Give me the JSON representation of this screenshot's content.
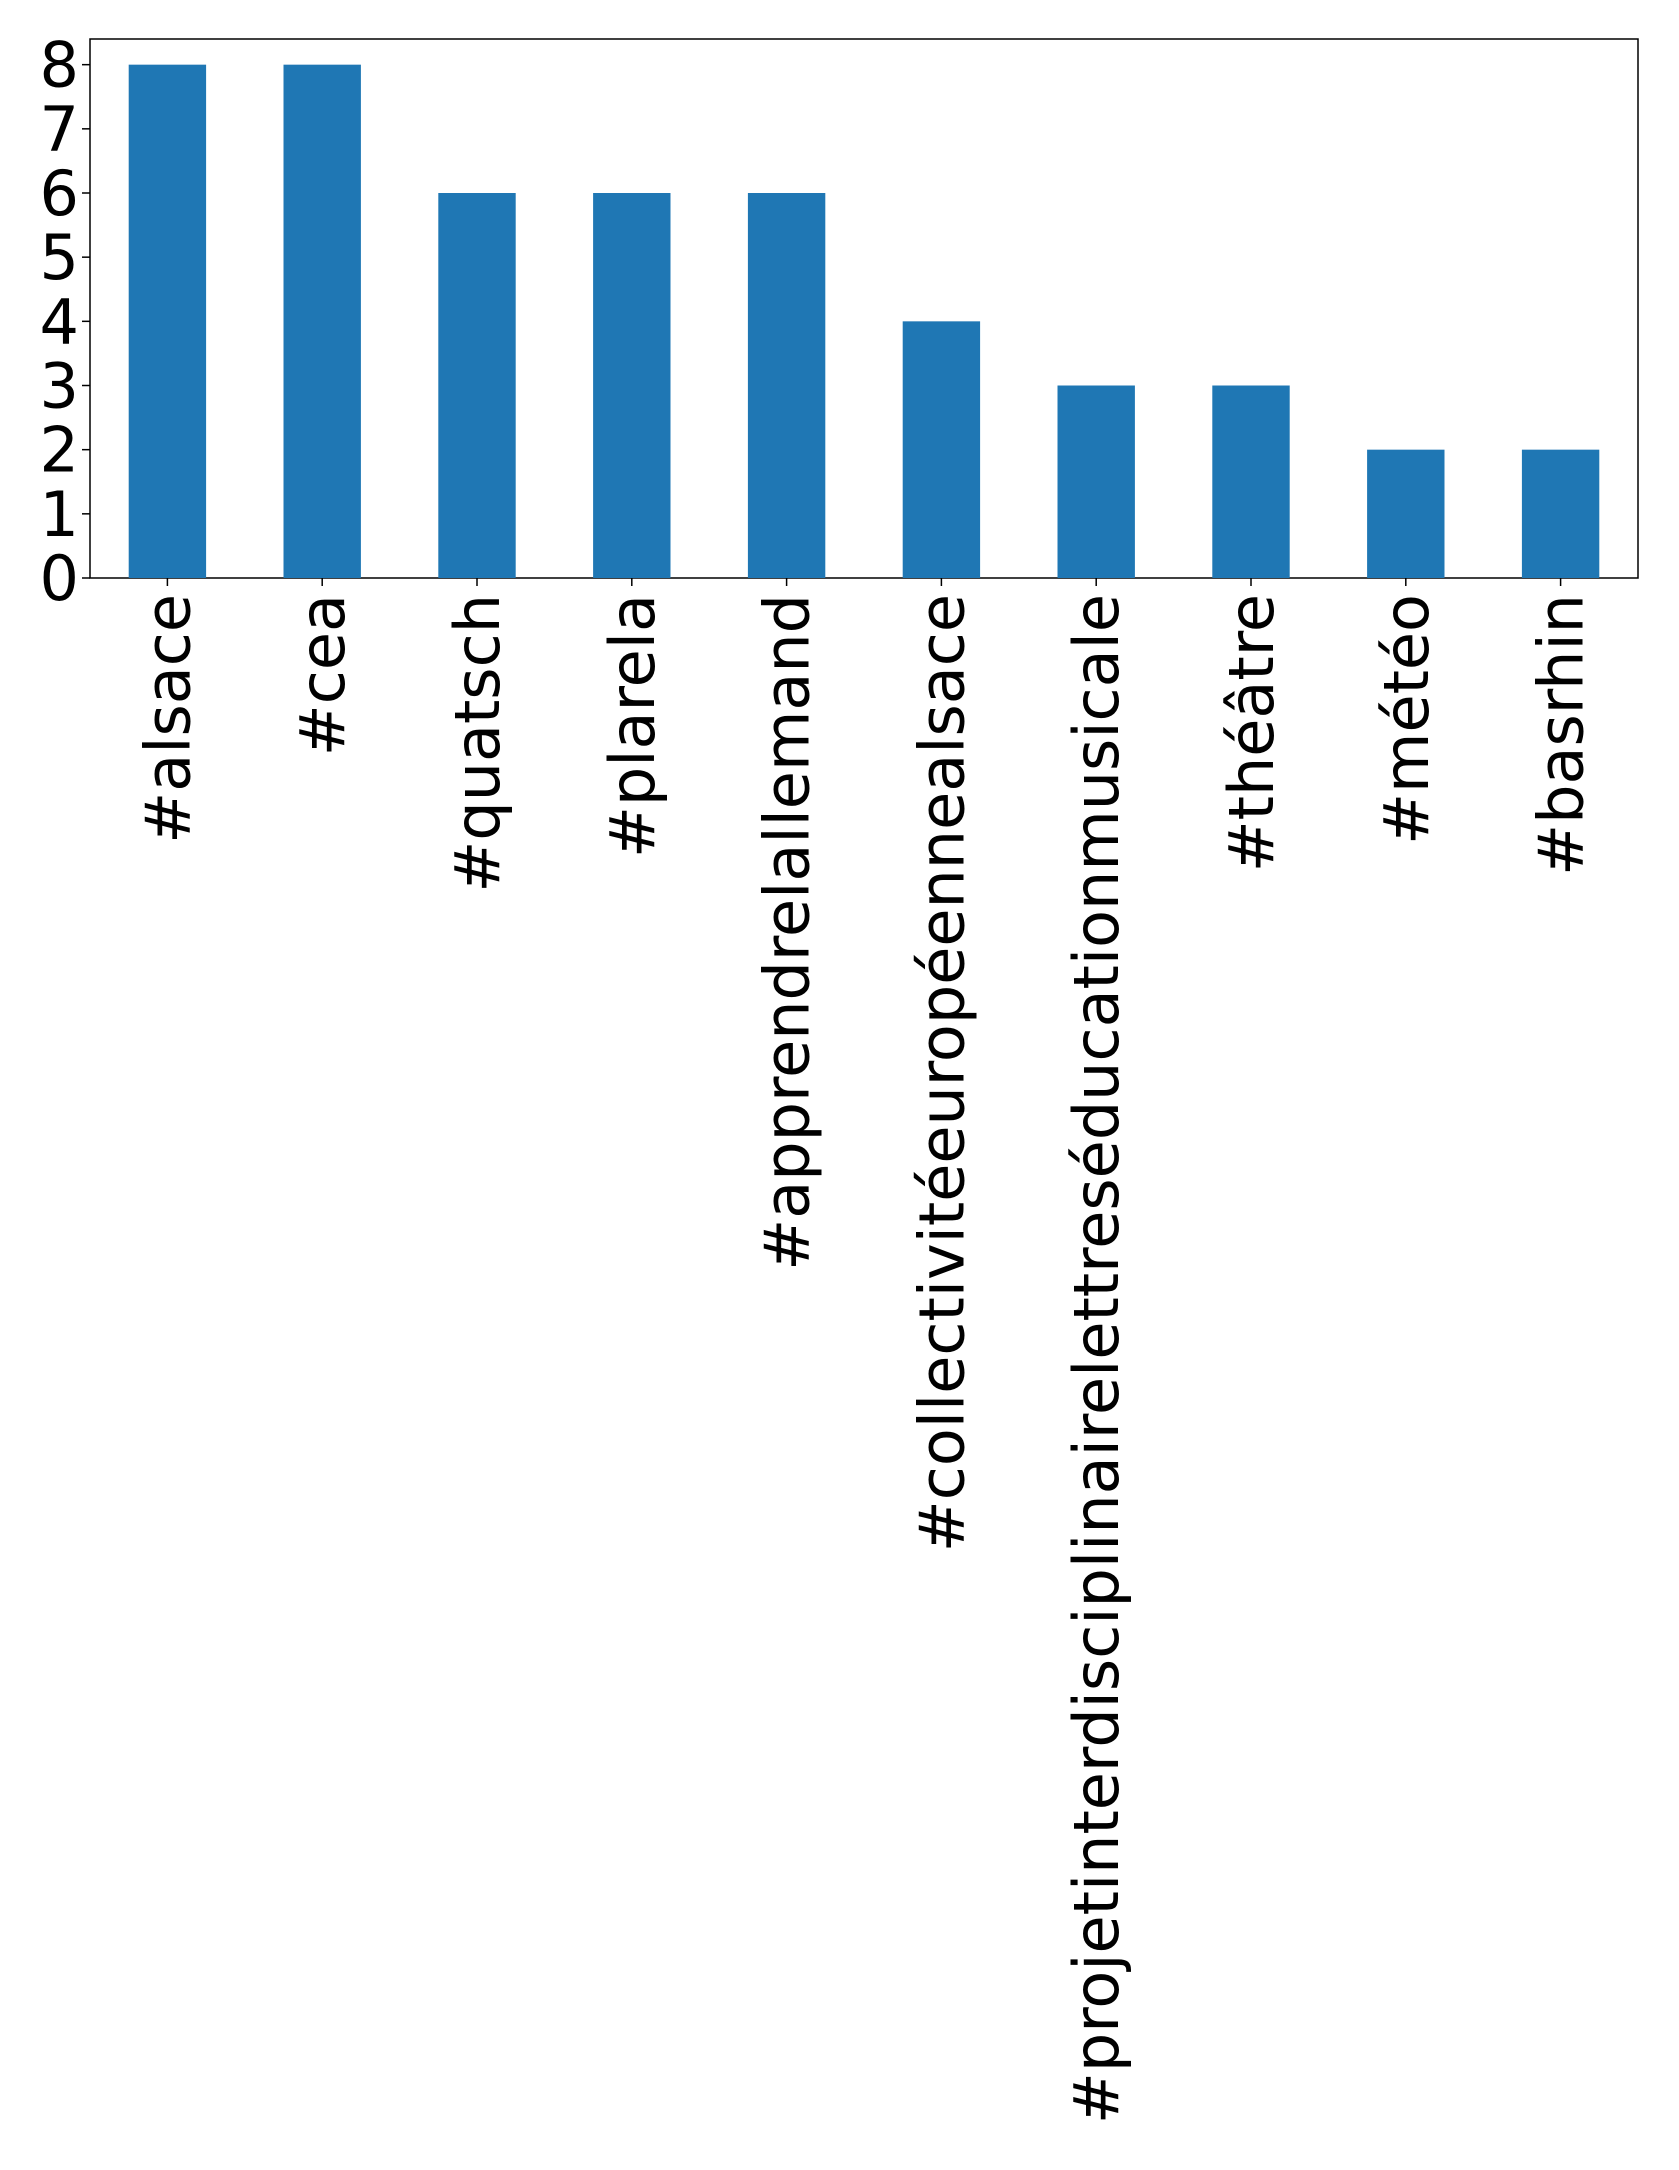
{
  "chart_data": {
    "type": "bar",
    "categories": [
      "#alsace",
      "#cea",
      "#quatsch",
      "#plarela",
      "#apprendrelallemand",
      "#collectivitéeuropéennealsace",
      "#projetinterdisciplinairelettreséducationmusicale",
      "#théâtre",
      "#météo",
      "#basrhin"
    ],
    "values": [
      8,
      8,
      6,
      6,
      6,
      4,
      3,
      3,
      2,
      2
    ],
    "color": "#1f77b4",
    "ylim": [
      0,
      8.4
    ],
    "yticks": [
      0,
      1,
      2,
      3,
      4,
      5,
      6,
      7,
      8
    ],
    "grid": false
  }
}
